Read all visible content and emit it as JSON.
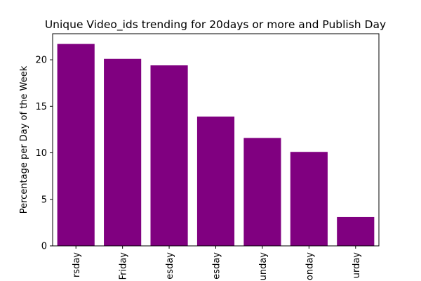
{
  "chart_data": {
    "type": "bar",
    "title": "Unique Video_ids trending for 20days or more and Publish Day",
    "xlabel": "",
    "ylabel": "Percentage per Day of the Week",
    "categories": [
      "rsday",
      "Friday",
      "esday",
      "esday",
      "unday",
      "onday",
      "urday"
    ],
    "values": [
      21.7,
      20.1,
      19.4,
      13.9,
      11.6,
      10.1,
      3.1
    ],
    "ylim": [
      0,
      22.8
    ],
    "yticks": [
      0,
      5,
      10,
      15,
      20
    ],
    "grid": false,
    "legend": "none",
    "bar_color": "#800080"
  }
}
